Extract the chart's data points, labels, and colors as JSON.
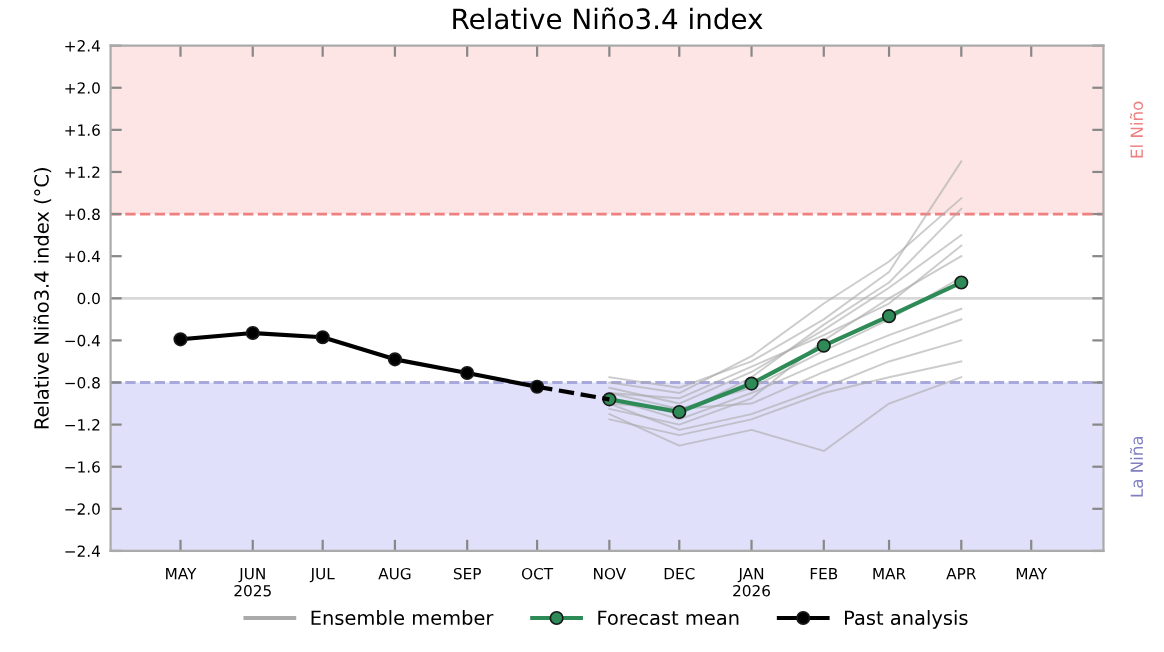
{
  "chart_data": {
    "type": "line",
    "title": "Relative Niño3.4 index",
    "ylabel": "Relative Niño3.4 index (°C)",
    "xlim": [
      "2025-04",
      "2026-06"
    ],
    "xticks": [
      {
        "value": "2025-05",
        "label": "MAY"
      },
      {
        "value": "2025-06",
        "label": "JUN\n2025"
      },
      {
        "value": "2025-07",
        "label": "JUL"
      },
      {
        "value": "2025-08",
        "label": "AUG"
      },
      {
        "value": "2025-09",
        "label": "SEP"
      },
      {
        "value": "2025-10",
        "label": "OCT"
      },
      {
        "value": "2025-11",
        "label": "NOV"
      },
      {
        "value": "2025-12",
        "label": "DEC"
      },
      {
        "value": "2026-01",
        "label": "JAN\n2026"
      },
      {
        "value": "2026-02",
        "label": "FEB"
      },
      {
        "value": "2026-03",
        "label": "MAR"
      },
      {
        "value": "2026-04",
        "label": "APR"
      },
      {
        "value": "2026-05",
        "label": "MAY"
      }
    ],
    "ylim": [
      -2.4,
      2.4
    ],
    "yticks": [
      {
        "value": 2.4,
        "label": "+2.4"
      },
      {
        "value": 2.0,
        "label": "+2.0"
      },
      {
        "value": 1.6,
        "label": "+1.6"
      },
      {
        "value": 1.2,
        "label": "+1.2"
      },
      {
        "value": 0.8,
        "label": "+0.8"
      },
      {
        "value": 0.4,
        "label": "+0.4"
      },
      {
        "value": 0.0,
        "label": "0.0"
      },
      {
        "value": -0.4,
        "label": "−0.4"
      },
      {
        "value": -0.8,
        "label": "−0.8"
      },
      {
        "value": -1.2,
        "label": "−1.2"
      },
      {
        "value": -1.6,
        "label": "−1.6"
      },
      {
        "value": -2.0,
        "label": "−2.0"
      },
      {
        "value": -2.4,
        "label": "−2.4"
      }
    ],
    "grid": false,
    "legend": "bottom",
    "bands": [
      {
        "axis": "y",
        "from": 0.8,
        "to": 2.4,
        "label": "El Niño",
        "color": "#fde5e5"
      },
      {
        "axis": "y",
        "from": -2.4,
        "to": -0.8,
        "label": "La Niña",
        "color": "#e0e0fa"
      }
    ],
    "ref_lines": [
      {
        "axis": "y",
        "value": 0.8,
        "label": null,
        "color": "#f08080",
        "line_style": "dashed"
      },
      {
        "axis": "y",
        "value": -0.8,
        "label": null,
        "color": "#a8a8dc",
        "line_style": "dashed"
      },
      {
        "axis": "y",
        "value": 0.0,
        "label": null,
        "color": "#d8d8d8",
        "line_style": "solid"
      }
    ],
    "series": [
      {
        "name": "Ensemble member",
        "color": "#aaaaaa",
        "marker": "none",
        "line_style": "solid",
        "x": [
          "2025-11",
          "2025-12",
          "2026-01",
          "2026-02",
          "2026-03",
          "2026-04"
        ],
        "values": [
          -0.8,
          -0.9,
          -0.55,
          -0.05,
          0.35,
          0.95
        ]
      },
      {
        "color": "#aaaaaa",
        "marker": "none",
        "line_style": "solid",
        "x": [
          "2025-11",
          "2025-12",
          "2026-01",
          "2026-02",
          "2026-03",
          "2026-04"
        ],
        "values": [
          -0.85,
          -1.0,
          -0.7,
          -0.3,
          0.1,
          0.6
        ]
      },
      {
        "color": "#aaaaaa",
        "marker": "none",
        "line_style": "solid",
        "x": [
          "2025-11",
          "2025-12",
          "2026-01",
          "2026-02",
          "2026-03",
          "2026-04"
        ],
        "values": [
          -0.9,
          -1.05,
          -0.85,
          -0.5,
          -0.2,
          0.2
        ]
      },
      {
        "color": "#aaaaaa",
        "marker": "none",
        "line_style": "solid",
        "x": [
          "2025-11",
          "2025-12",
          "2026-01",
          "2026-02",
          "2026-03",
          "2026-04"
        ],
        "values": [
          -0.95,
          -1.15,
          -0.9,
          -0.6,
          -0.35,
          -0.1
        ]
      },
      {
        "color": "#aaaaaa",
        "marker": "none",
        "line_style": "solid",
        "x": [
          "2025-11",
          "2025-12",
          "2026-01",
          "2026-02",
          "2026-03",
          "2026-04"
        ],
        "values": [
          -1.0,
          -1.25,
          -1.1,
          -0.85,
          -0.6,
          -0.4
        ]
      },
      {
        "color": "#aaaaaa",
        "marker": "none",
        "line_style": "solid",
        "x": [
          "2025-11",
          "2025-12",
          "2026-01",
          "2026-02",
          "2026-03",
          "2026-04"
        ],
        "values": [
          -1.1,
          -1.4,
          -1.25,
          -1.45,
          -1.0,
          -0.75
        ]
      },
      {
        "color": "#aaaaaa",
        "marker": "none",
        "line_style": "solid",
        "x": [
          "2025-11",
          "2025-12",
          "2026-01",
          "2026-02",
          "2026-03",
          "2026-04"
        ],
        "values": [
          -0.75,
          -0.85,
          -0.6,
          -0.2,
          0.25,
          1.3
        ]
      },
      {
        "color": "#aaaaaa",
        "marker": "none",
        "line_style": "solid",
        "x": [
          "2025-11",
          "2025-12",
          "2026-01",
          "2026-02",
          "2026-03",
          "2026-04"
        ],
        "values": [
          -1.05,
          -1.2,
          -0.95,
          -0.4,
          0.0,
          0.4
        ]
      },
      {
        "color": "#aaaaaa",
        "marker": "none",
        "line_style": "solid",
        "x": [
          "2025-11",
          "2025-12",
          "2026-01",
          "2026-02",
          "2026-03",
          "2026-04"
        ],
        "values": [
          -0.95,
          -1.1,
          -0.75,
          -0.25,
          0.15,
          0.85
        ]
      },
      {
        "color": "#aaaaaa",
        "marker": "none",
        "line_style": "solid",
        "x": [
          "2025-11",
          "2025-12",
          "2026-01",
          "2026-02",
          "2026-03",
          "2026-04"
        ],
        "values": [
          -1.0,
          -1.05,
          -1.0,
          -0.7,
          -0.45,
          -0.2
        ]
      },
      {
        "color": "#aaaaaa",
        "marker": "none",
        "line_style": "solid",
        "x": [
          "2025-11",
          "2025-12",
          "2026-01",
          "2026-02",
          "2026-03",
          "2026-04"
        ],
        "values": [
          -0.9,
          -0.95,
          -0.65,
          -0.35,
          -0.05,
          0.5
        ]
      },
      {
        "color": "#aaaaaa",
        "marker": "none",
        "line_style": "solid",
        "x": [
          "2025-11",
          "2025-12",
          "2026-01",
          "2026-02",
          "2026-03",
          "2026-04"
        ],
        "values": [
          -1.15,
          -1.3,
          -1.15,
          -0.9,
          -0.75,
          -0.6
        ]
      },
      {
        "name": "Forecast mean",
        "color": "#2e8b57",
        "marker": "circle",
        "line_style": "solid",
        "x": [
          "2025-11",
          "2025-12",
          "2026-01",
          "2026-02",
          "2026-03",
          "2026-04"
        ],
        "values": [
          -0.96,
          -1.08,
          -0.81,
          -0.45,
          -0.17,
          0.15
        ]
      },
      {
        "name": "Past analysis",
        "color": "#000000",
        "marker": "circle",
        "line_style": "solid",
        "x": [
          "2025-05",
          "2025-06",
          "2025-07",
          "2025-08",
          "2025-09",
          "2025-10"
        ],
        "values": [
          -0.39,
          -0.33,
          -0.37,
          -0.58,
          -0.71,
          -0.84
        ]
      },
      {
        "color": "#000000",
        "marker": "none",
        "line_style": "dashed",
        "x": [
          "2025-10",
          "2025-11"
        ],
        "values": [
          -0.84,
          -0.96
        ]
      }
    ]
  }
}
